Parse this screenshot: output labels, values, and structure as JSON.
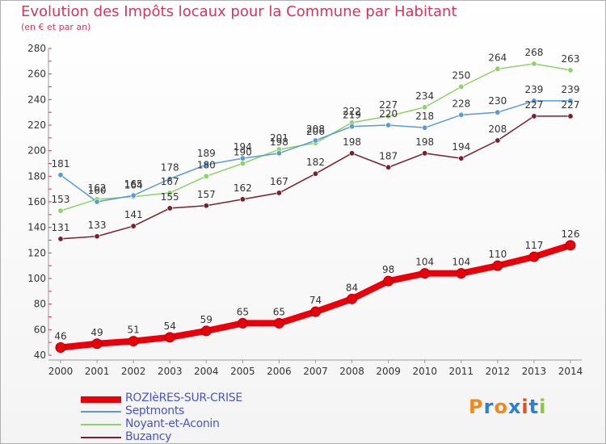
{
  "header": {
    "title": "Evolution des Impôts locaux pour la Commune par Habitant",
    "subtitle": "(en € et par an)"
  },
  "logo": {
    "text": "Proxiti",
    "letters": [
      "P",
      "r",
      "o",
      "x",
      "i",
      "t",
      "i"
    ],
    "colors": [
      "#f08a1e",
      "#2c7ed6",
      "#f08a1e",
      "#2c7ed6",
      "#e84c1a",
      "#2c7ed6",
      "#8cc63f"
    ]
  },
  "chart_data": {
    "type": "line",
    "title": "Evolution des Impôts locaux pour la Commune par Habitant",
    "subtitle": "(en € et par an)",
    "x": [
      "2000",
      "2001",
      "2002",
      "2003",
      "2004",
      "2005",
      "2006",
      "2007",
      "2008",
      "2009",
      "2010",
      "2011",
      "2012",
      "2013",
      "2014"
    ],
    "ylim": [
      40,
      280
    ],
    "yticks": [
      40,
      60,
      80,
      100,
      120,
      140,
      160,
      180,
      200,
      220,
      240,
      260,
      280
    ],
    "grid": false,
    "legend_position": "bottom-left",
    "series": [
      {
        "name": "ROZIèRES-SUR-CRISE",
        "color": "#e8000b",
        "values": [
          46,
          49,
          51,
          54,
          59,
          65,
          65,
          74,
          84,
          98,
          104,
          104,
          110,
          117,
          126
        ],
        "labels": [
          "46",
          "49",
          "51",
          "54",
          "59",
          "65",
          "65",
          "74",
          "84",
          "98",
          "104",
          "104",
          "110",
          "117",
          "126"
        ]
      },
      {
        "name": "Septmonts",
        "color": "#5b9bd5",
        "values": [
          181,
          160,
          165,
          178,
          189,
          194,
          198,
          208,
          219,
          220,
          218,
          228,
          230,
          239,
          239
        ],
        "labels": [
          "181",
          "160",
          "165",
          "178",
          "189",
          "194",
          "198",
          "208",
          "219",
          "220",
          "218",
          "228",
          "230",
          "239",
          "239"
        ]
      },
      {
        "name": "Noyant-et-Aconin",
        "color": "#8fd16a",
        "values": [
          153,
          162,
          164,
          167,
          180,
          190,
          201,
          206,
          222,
          227,
          234,
          250,
          264,
          268,
          263
        ],
        "labels": [
          "153",
          "162",
          "164",
          "167",
          "180",
          "190",
          "201",
          "206",
          "222",
          "227",
          "234",
          "250",
          "264",
          "268",
          "263"
        ]
      },
      {
        "name": "Buzancy",
        "color": "#7a1f2b",
        "values": [
          131,
          133,
          141,
          155,
          157,
          162,
          167,
          182,
          198,
          187,
          198,
          194,
          208,
          227,
          227
        ],
        "labels": [
          "131",
          "133",
          "141",
          "155",
          "157",
          "162",
          "167",
          "182",
          "198",
          "187",
          "198",
          "194",
          "208",
          "227",
          "227"
        ]
      }
    ]
  }
}
